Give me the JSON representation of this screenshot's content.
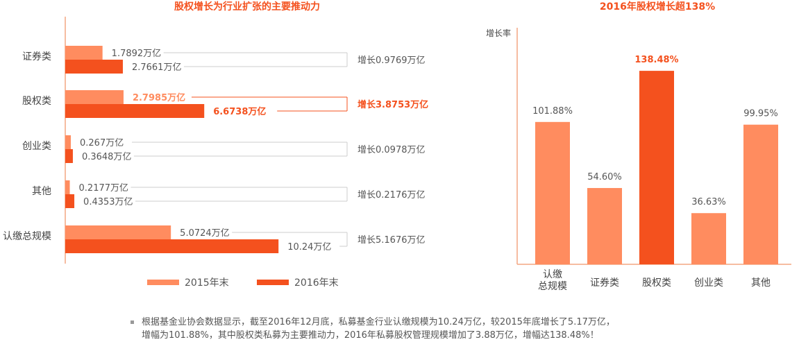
{
  "colors": {
    "c2015": "#ff8c5f",
    "c2016": "#f4511e",
    "axis": "#f4a582",
    "text": "#555555",
    "accent": "#f4511e",
    "bracket": "#cccccc"
  },
  "chart_data": [
    {
      "type": "bar",
      "orientation": "horizontal",
      "title": "股权增长为行业扩张的主要推动力",
      "categories": [
        "证券类",
        "股权类",
        "创业类",
        "其他",
        "认缴总规模"
      ],
      "series": [
        {
          "name": "2015年末",
          "values": [
            1.7892,
            2.7985,
            0.267,
            0.2177,
            5.0724
          ],
          "labels": [
            "1.7892万亿",
            "2.7985万亿",
            "0.267万亿",
            "0.2177万亿",
            "5.0724万亿"
          ]
        },
        {
          "name": "2016年末",
          "values": [
            2.7661,
            6.6738,
            0.3648,
            0.4353,
            10.24
          ],
          "labels": [
            "2.7661万亿",
            "6.6738万亿",
            "0.3648万亿",
            "0.4353万亿",
            "10.24万亿"
          ]
        }
      ],
      "growth_labels": [
        "增长0.9769万亿",
        "增长3.8753万亿",
        "增长0.0978万亿",
        "增长0.2176万亿",
        "增长5.1676万亿"
      ],
      "highlight_index": 1,
      "legend": "bottom"
    },
    {
      "type": "bar",
      "title": "2016年股权增长超138%",
      "ylabel": "增长率",
      "categories": [
        [
          "认缴",
          "总规模"
        ],
        [
          "证券类"
        ],
        [
          "股权类"
        ],
        [
          "创业类"
        ],
        [
          "其他"
        ]
      ],
      "values": [
        101.88,
        54.6,
        138.48,
        36.63,
        99.95
      ],
      "value_labels": [
        "101.88%",
        "54.60%",
        "138.48%",
        "36.63%",
        "99.95%"
      ],
      "highlight_index": 2
    }
  ],
  "note": {
    "lines": [
      "根据基金业协会数据显示，截至2016年12月底，私募基金行业认缴规模为10.24万亿，较2015年底增长了5.17万亿，",
      "增幅为101.88%，其中股权类私募为主要推动力，2016年私募股权管理规模增加了3.88万亿，增幅达138.48%！"
    ]
  }
}
